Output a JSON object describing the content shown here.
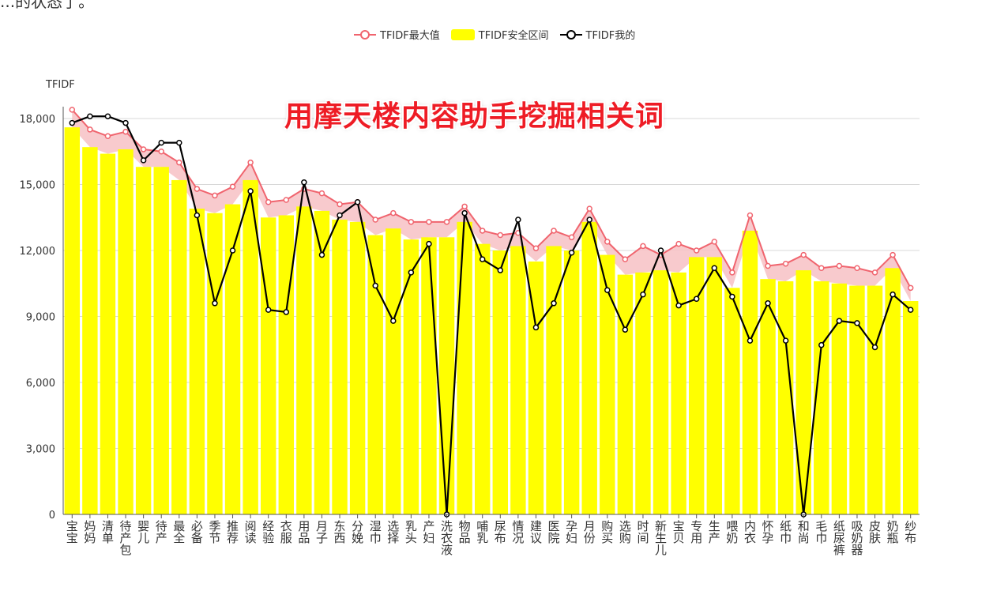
{
  "header_partial": "...的状态了。",
  "chart_data": {
    "type": "bar",
    "title": "用摩天楼内容助手挖掘相关词",
    "ylabel": "TFIDF",
    "xlabel": "",
    "ylim": [
      0,
      18000
    ],
    "yticks": [
      "0",
      "3,000",
      "6,000",
      "9,000",
      "12,000",
      "15,000",
      "18,000"
    ],
    "legend": {
      "position": "top-center",
      "items": [
        {
          "label": "TFIDF最大值",
          "kind": "line",
          "color": "#f0646e"
        },
        {
          "label": "TFIDF安全区间",
          "kind": "bar",
          "color": "#ffff00"
        },
        {
          "label": "TFIDF我的",
          "kind": "line",
          "color": "#000000"
        }
      ]
    },
    "categories": [
      "宝宝",
      "妈妈",
      "清单",
      "待产包",
      "婴儿",
      "待产",
      "最全",
      "必备",
      "季节",
      "推荐",
      "阅读",
      "经验",
      "衣服",
      "用品",
      "月子",
      "东西",
      "分娩",
      "湿巾",
      "选择",
      "乳头",
      "产妇",
      "洗衣液",
      "物品",
      "哺乳",
      "尿布",
      "情况",
      "建议",
      "医院",
      "孕妇",
      "月份",
      "购买",
      "选购",
      "时间",
      "新生儿",
      "宝贝",
      "专用",
      "生产",
      "喂奶",
      "内衣",
      "怀孕",
      "纸巾",
      "和尚",
      "毛巾",
      "纸尿裤",
      "吸奶器",
      "皮肤",
      "奶瓶",
      "纱布"
    ],
    "series": [
      {
        "name": "TFIDF最大值",
        "type": "line",
        "color": "#f0646e",
        "values": [
          18400,
          17500,
          17200,
          17400,
          16600,
          16500,
          16000,
          14800,
          14500,
          14900,
          16000,
          14200,
          14300,
          14800,
          14600,
          14100,
          14200,
          13400,
          13700,
          13300,
          13300,
          13300,
          14000,
          12900,
          12700,
          12800,
          12100,
          12900,
          12600,
          13900,
          12400,
          11600,
          12200,
          11800,
          12300,
          12000,
          12400,
          11000,
          13600,
          11300,
          11400,
          11800,
          11200,
          11300,
          11200,
          11000,
          11800,
          10300
        ]
      },
      {
        "name": "TFIDF安全区间",
        "type": "bar",
        "color": "#ffff00",
        "values": [
          17600,
          16700,
          16400,
          16600,
          15800,
          15800,
          15200,
          13900,
          13700,
          14100,
          15200,
          13500,
          13600,
          14000,
          13800,
          13400,
          13300,
          12700,
          13000,
          12500,
          12600,
          12600,
          13300,
          12300,
          12000,
          12200,
          11500,
          12200,
          12000,
          13300,
          11800,
          10900,
          11000,
          11100,
          11000,
          11700,
          11700,
          10300,
          12900,
          10700,
          10600,
          11100,
          10600,
          10500,
          10400,
          10400,
          11200,
          9700
        ]
      },
      {
        "name": "TFIDF我的",
        "type": "line",
        "color": "#000000",
        "values": [
          17800,
          18100,
          18100,
          17800,
          16100,
          16900,
          16900,
          13600,
          9600,
          12000,
          14700,
          9300,
          9200,
          15100,
          11800,
          13600,
          14200,
          10400,
          8800,
          11000,
          12300,
          0,
          13700,
          11600,
          11100,
          13400,
          8500,
          9600,
          11900,
          13400,
          10200,
          8400,
          10000,
          12000,
          9500,
          9800,
          11200,
          9900,
          7900,
          9600,
          7900,
          0,
          7700,
          8800,
          8700,
          7600,
          10000,
          9300
        ]
      }
    ],
    "shaded_band": {
      "between": [
        "TFIDF安全区间",
        "TFIDF最大值"
      ],
      "color": "#f7c4c8"
    },
    "grid": true
  }
}
